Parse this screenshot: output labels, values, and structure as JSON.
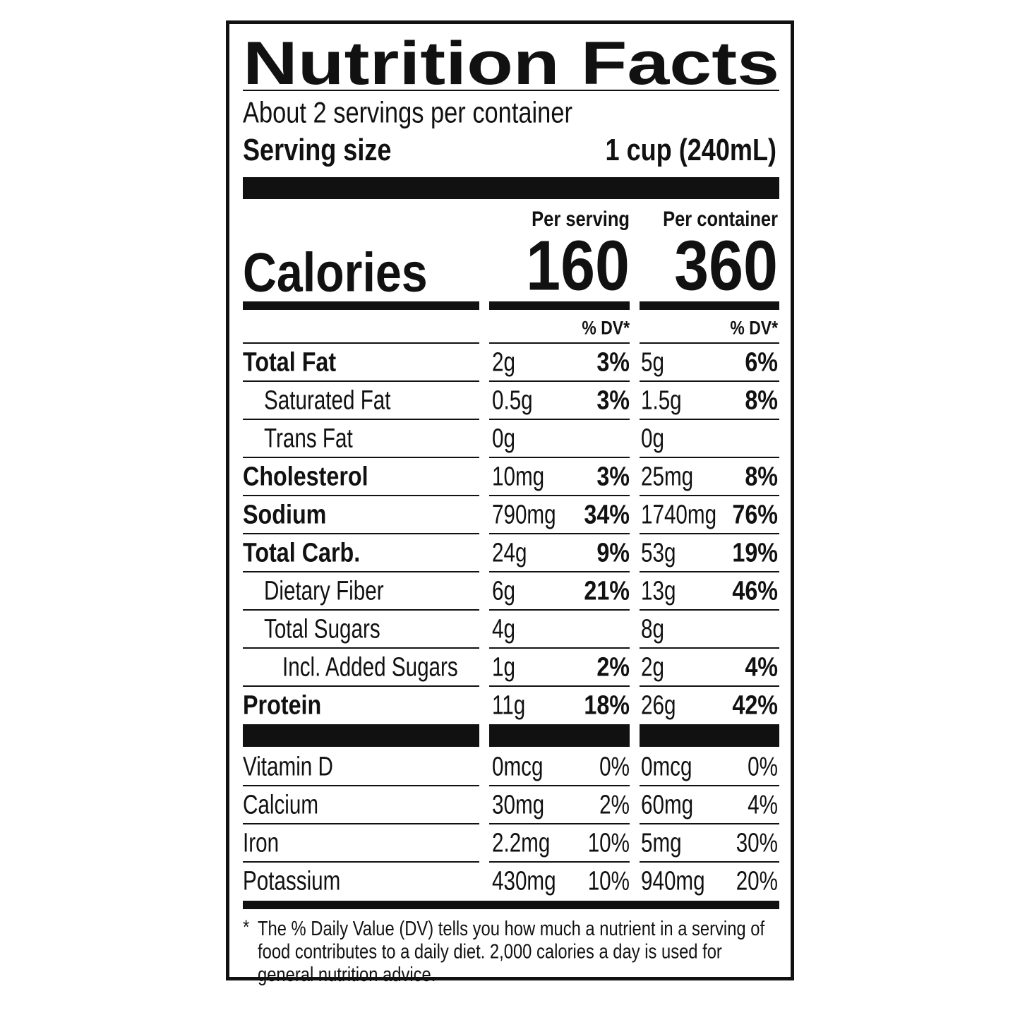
{
  "title": "Nutrition Facts",
  "servings": "About 2 servings per container",
  "serving_size": {
    "label": "Serving size",
    "value": "1 cup (240mL)"
  },
  "columns": [
    "Per serving",
    "Per container"
  ],
  "calories": {
    "label": "Calories",
    "values": [
      160,
      360
    ]
  },
  "dv_header": [
    "% DV*",
    "% DV*"
  ],
  "nutrients": [
    {
      "name": "Total Fat",
      "indent": 0,
      "bold": true,
      "per_serving": {
        "amount": "2g",
        "dv": "3%"
      },
      "per_container": {
        "amount": "5g",
        "dv": "6%"
      }
    },
    {
      "name": "Saturated Fat",
      "indent": 1,
      "bold": false,
      "per_serving": {
        "amount": "0.5g",
        "dv": "3%"
      },
      "per_container": {
        "amount": "1.5g",
        "dv": "8%"
      }
    },
    {
      "name": "Trans Fat",
      "indent": 1,
      "bold": false,
      "per_serving": {
        "amount": "0g",
        "dv": null
      },
      "per_container": {
        "amount": "0g",
        "dv": null
      }
    },
    {
      "name": "Cholesterol",
      "indent": 0,
      "bold": true,
      "per_serving": {
        "amount": "10mg",
        "dv": "3%"
      },
      "per_container": {
        "amount": "25mg",
        "dv": "8%"
      }
    },
    {
      "name": "Sodium",
      "indent": 0,
      "bold": true,
      "per_serving": {
        "amount": "790mg",
        "dv": "34%"
      },
      "per_container": {
        "amount": "1740mg",
        "dv": "76%"
      }
    },
    {
      "name": "Total Carb.",
      "indent": 0,
      "bold": true,
      "per_serving": {
        "amount": "24g",
        "dv": "9%"
      },
      "per_container": {
        "amount": "53g",
        "dv": "19%"
      }
    },
    {
      "name": "Dietary Fiber",
      "indent": 1,
      "bold": false,
      "per_serving": {
        "amount": "6g",
        "dv": "21%"
      },
      "per_container": {
        "amount": "13g",
        "dv": "46%"
      }
    },
    {
      "name": "Total Sugars",
      "indent": 1,
      "bold": false,
      "per_serving": {
        "amount": "4g",
        "dv": null
      },
      "per_container": {
        "amount": "8g",
        "dv": null
      }
    },
    {
      "name": "Incl. Added Sugars",
      "indent": 2,
      "bold": false,
      "per_serving": {
        "amount": "1g",
        "dv": "2%"
      },
      "per_container": {
        "amount": "2g",
        "dv": "4%"
      }
    },
    {
      "name": "Protein",
      "indent": 0,
      "bold": true,
      "per_serving": {
        "amount": "11g",
        "dv": "18%"
      },
      "per_container": {
        "amount": "26g",
        "dv": "42%"
      }
    }
  ],
  "vitamins": [
    {
      "name": "Vitamin D",
      "per_serving": {
        "amount": "0mcg",
        "dv": "0%"
      },
      "per_container": {
        "amount": "0mcg",
        "dv": "0%"
      }
    },
    {
      "name": "Calcium",
      "per_serving": {
        "amount": "30mg",
        "dv": "2%"
      },
      "per_container": {
        "amount": "60mg",
        "dv": "4%"
      }
    },
    {
      "name": "Iron",
      "per_serving": {
        "amount": "2.2mg",
        "dv": "10%"
      },
      "per_container": {
        "amount": "5mg",
        "dv": "30%"
      }
    },
    {
      "name": "Potassium",
      "per_serving": {
        "amount": "430mg",
        "dv": "10%"
      },
      "per_container": {
        "amount": "940mg",
        "dv": "20%"
      }
    }
  ],
  "footnote": {
    "mark": "*",
    "lines": [
      "The % Daily Value (DV) tells you how much a nutrient in a serving of",
      "food contributes to a daily diet. 2,000 calories a day is used for",
      "general nutrition advice."
    ]
  }
}
